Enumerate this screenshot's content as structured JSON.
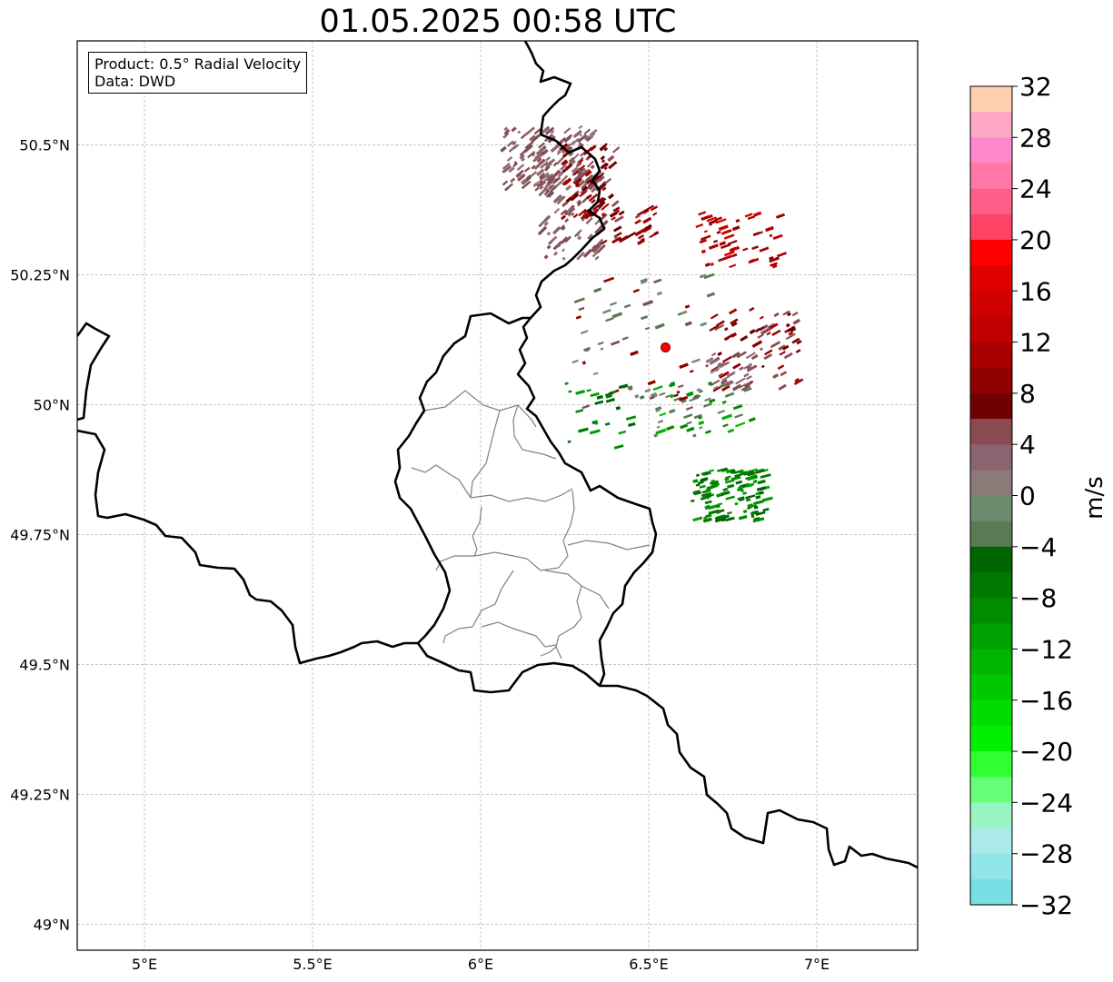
{
  "title": "01.05.2025 00:58 UTC",
  "legend": {
    "product": "Product: 0.5° Radial Velocity",
    "data": "Data: DWD"
  },
  "colorbar": {
    "label": "m/s",
    "min": -32,
    "max": 32,
    "ticks": [
      "32",
      "28",
      "24",
      "20",
      "16",
      "12",
      "8",
      "4",
      "0",
      "−4",
      "−8",
      "−12",
      "−16",
      "−20",
      "−24",
      "−28",
      "−32"
    ],
    "colors_top_to_bottom": [
      "#ffcfb0",
      "#ffa8c4",
      "#ff88cc",
      "#ff78a8",
      "#ff5e88",
      "#ff4466",
      "#ff0000",
      "#e00000",
      "#d00000",
      "#c00000",
      "#a80000",
      "#900000",
      "#700000",
      "#8b4a52",
      "#8a646e",
      "#8a7a78",
      "#6c8a6c",
      "#5a7a54",
      "#006400",
      "#007800",
      "#008c00",
      "#00a000",
      "#00b400",
      "#00c800",
      "#00dc00",
      "#00f000",
      "#30ff30",
      "#66ff77",
      "#99f5c4",
      "#aaeaea",
      "#90e6e8",
      "#78e0e4"
    ]
  },
  "axes": {
    "x_ticks": [
      "5°E",
      "5.5°E",
      "6°E",
      "6.5°E",
      "7°E"
    ],
    "y_ticks": [
      "50.5°N",
      "50.25°N",
      "50°N",
      "49.75°N",
      "49.5°N",
      "49.25°N",
      "49°N"
    ]
  },
  "map_data": {
    "lon_range": [
      4.8,
      7.3
    ],
    "lat_range": [
      48.95,
      50.7
    ],
    "x_tick_values": [
      5.0,
      5.5,
      6.0,
      6.5,
      7.0
    ],
    "y_tick_values": [
      50.5,
      50.25,
      50.0,
      49.75,
      49.5,
      49.25,
      49.0
    ],
    "radar_site": {
      "lon": 6.55,
      "lat": 50.11,
      "color": "#ff0000"
    },
    "grid": true
  }
}
